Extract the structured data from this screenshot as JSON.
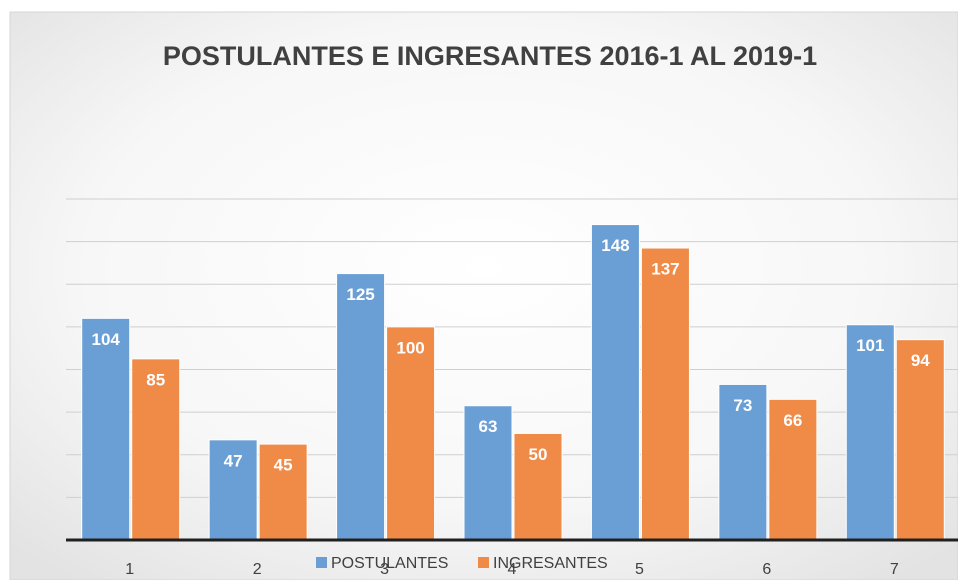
{
  "chart_data": {
    "type": "bar",
    "title": "POSTULANTES E INGRESANTES 2016-1 AL 2019-1",
    "categories": [
      "1",
      "2",
      "3",
      "4",
      "5",
      "6",
      "7"
    ],
    "series": [
      {
        "name": "POSTULANTES",
        "color": "#6a9fd6",
        "values": [
          104,
          47,
          125,
          63,
          148,
          73,
          101
        ]
      },
      {
        "name": "INGRESANTES",
        "color": "#ef8a47",
        "values": [
          85,
          45,
          100,
          50,
          137,
          66,
          94
        ]
      }
    ],
    "ylim": [
      0,
      160
    ],
    "yticks": [
      0,
      20,
      40,
      60,
      80,
      100,
      120,
      140,
      160
    ],
    "grid": true,
    "legend": "bottom"
  }
}
